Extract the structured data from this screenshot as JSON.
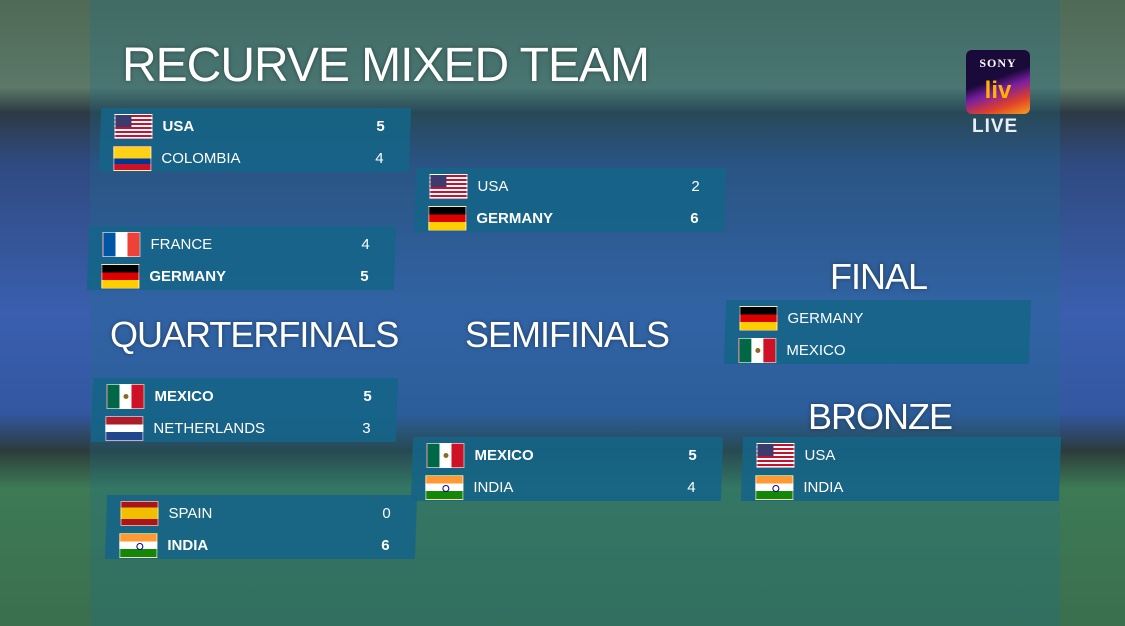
{
  "title": "RECURVE MIXED TEAM",
  "broadcaster": {
    "logo_text": "SONY liv",
    "live_label": "LIVE"
  },
  "rounds": {
    "quarterfinals": {
      "label": "QUARTERFINALS",
      "matches": [
        [
          {
            "country": "USA",
            "flag": "usa",
            "score": "5",
            "winner": true
          },
          {
            "country": "COLOMBIA",
            "flag": "col",
            "score": "4",
            "winner": false
          }
        ],
        [
          {
            "country": "FRANCE",
            "flag": "fra",
            "score": "4",
            "winner": false
          },
          {
            "country": "GERMANY",
            "flag": "ger",
            "score": "5",
            "winner": true
          }
        ],
        [
          {
            "country": "MEXICO",
            "flag": "mex",
            "score": "5",
            "winner": true
          },
          {
            "country": "NETHERLANDS",
            "flag": "ned",
            "score": "3",
            "winner": false
          }
        ],
        [
          {
            "country": "SPAIN",
            "flag": "esp",
            "score": "0",
            "winner": false
          },
          {
            "country": "INDIA",
            "flag": "ind",
            "score": "6",
            "winner": true
          }
        ]
      ]
    },
    "semifinals": {
      "label": "SEMIFINALS",
      "matches": [
        [
          {
            "country": "USA",
            "flag": "usa",
            "score": "2",
            "winner": false
          },
          {
            "country": "GERMANY",
            "flag": "ger",
            "score": "6",
            "winner": true
          }
        ],
        [
          {
            "country": "MEXICO",
            "flag": "mex",
            "score": "5",
            "winner": true
          },
          {
            "country": "INDIA",
            "flag": "ind",
            "score": "4",
            "winner": false
          }
        ]
      ]
    },
    "final": {
      "label": "FINAL",
      "matches": [
        [
          {
            "country": "GERMANY",
            "flag": "ger",
            "score": ""
          },
          {
            "country": "MEXICO",
            "flag": "mex",
            "score": ""
          }
        ]
      ]
    },
    "bronze": {
      "label": "BRONZE",
      "matches": [
        [
          {
            "country": "USA",
            "flag": "usa",
            "score": ""
          },
          {
            "country": "INDIA",
            "flag": "ind",
            "score": ""
          }
        ]
      ]
    }
  },
  "colors": {
    "panel": "#14648a",
    "text": "#ffffff"
  }
}
